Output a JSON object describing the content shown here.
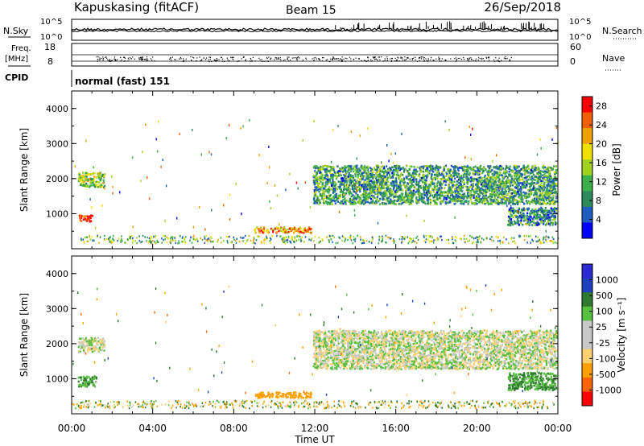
{
  "header": {
    "station": "Kapuskasing (fitACF)",
    "beam": "Beam 15",
    "date": "26/Sep/2018"
  },
  "left_labels": {
    "nsky": "N.Sky",
    "freq_line1": "Freq.",
    "freq_line2": "[MHz]",
    "cpid": "CPID"
  },
  "right_labels": {
    "nsearch": "N.Search",
    "nave": "Nave"
  },
  "cpid_text": "normal (fast) 151",
  "colors": {
    "power": [
      "#0000ff",
      "#1f5cc0",
      "#2d8a5c",
      "#3cb04a",
      "#a0d020",
      "#f0e000",
      "#f0a000",
      "#f06000",
      "#ff0000"
    ],
    "velocity": [
      "#ff0000",
      "#ff6400",
      "#ffa000",
      "#ffd070",
      "#c8c8c8",
      "#c8c8c8",
      "#58c040",
      "#2f7a2f",
      "#2040c0",
      "#2a2ad0"
    ]
  },
  "chart_data": [
    {
      "type": "line",
      "panel": "noise",
      "left_axis": {
        "label": "N.Sky",
        "ticks": [
          "10^5",
          "10^0"
        ]
      },
      "right_axis": {
        "label": "N.Search",
        "ticks": [
          "10^5",
          "10^0"
        ]
      },
      "x": {
        "ticks": [
          "00:00",
          "04:00",
          "08:00",
          "12:00",
          "16:00",
          "20:00",
          "00:00"
        ],
        "range_hours": [
          0,
          24
        ]
      }
    },
    {
      "type": "scatter",
      "panel": "frequency / nave",
      "left_axis": {
        "label": "Freq. [MHz]",
        "ticks": [
          "18",
          "8"
        ]
      },
      "right_axis": {
        "label": "Nave",
        "ticks": [
          "60",
          "0"
        ]
      },
      "x": {
        "range_hours": [
          0,
          24
        ]
      }
    },
    {
      "type": "heatmap",
      "panel": "power",
      "title": "",
      "xlabel": "Time UT",
      "ylabel": "Slant Range [km]",
      "yticks": [
        "4000",
        "3000",
        "2000",
        "1000"
      ],
      "ylim": [
        0,
        4500
      ],
      "xticks": [
        "00:00",
        "04:00",
        "08:00",
        "12:00",
        "16:00",
        "20:00",
        "00:00"
      ],
      "xlim_hours": [
        0,
        24
      ],
      "colorbar": {
        "label": "Power [dB]",
        "ticks": [
          "28",
          "24",
          "20",
          "16",
          "12",
          "8",
          "4"
        ],
        "range": [
          0,
          30
        ]
      },
      "features": [
        {
          "t0": 0.3,
          "t1": 1.6,
          "r0": 1780,
          "r1": 2200,
          "dominant_value_db": 14
        },
        {
          "t0": 0.3,
          "t1": 1.0,
          "r0": 800,
          "r1": 1000,
          "dominant_value_db": 28
        },
        {
          "t0": 9.0,
          "t1": 11.8,
          "r0": 480,
          "r1": 640,
          "dominant_value_db": 22
        },
        {
          "t0": 11.9,
          "t1": 23.9,
          "r0": 1300,
          "r1": 2400,
          "dominant_value_db": 10
        },
        {
          "t0": 21.5,
          "t1": 23.9,
          "r0": 700,
          "r1": 1200,
          "dominant_value_db": 8
        }
      ]
    },
    {
      "type": "heatmap",
      "panel": "velocity",
      "title": "",
      "xlabel": "Time UT",
      "ylabel": "Slant Range [km]",
      "yticks": [
        "4000",
        "3000",
        "2000",
        "1000"
      ],
      "ylim": [
        0,
        4500
      ],
      "xticks": [
        "00:00",
        "04:00",
        "08:00",
        "12:00",
        "16:00",
        "20:00",
        "00:00"
      ],
      "xlim_hours": [
        0,
        24
      ],
      "colorbar": {
        "label": "Velocity [m s⁻¹]",
        "ticks": [
          "1000",
          "500",
          "100",
          "25",
          "-25",
          "-100",
          "-500",
          "-1000"
        ]
      },
      "features": [
        {
          "t0": 0.3,
          "t1": 1.6,
          "r0": 1780,
          "r1": 2200,
          "dominant_velocity": 0
        },
        {
          "t0": 0.3,
          "t1": 1.2,
          "r0": 800,
          "r1": 1100,
          "dominant_velocity": 100
        },
        {
          "t0": 9.0,
          "t1": 11.8,
          "r0": 480,
          "r1": 640,
          "dominant_velocity": -200
        },
        {
          "t0": 11.9,
          "t1": 23.9,
          "r0": 1300,
          "r1": 2400,
          "dominant_velocity": 0
        },
        {
          "t0": 21.5,
          "t1": 23.9,
          "r0": 700,
          "r1": 1200,
          "dominant_velocity": 100
        }
      ]
    }
  ]
}
